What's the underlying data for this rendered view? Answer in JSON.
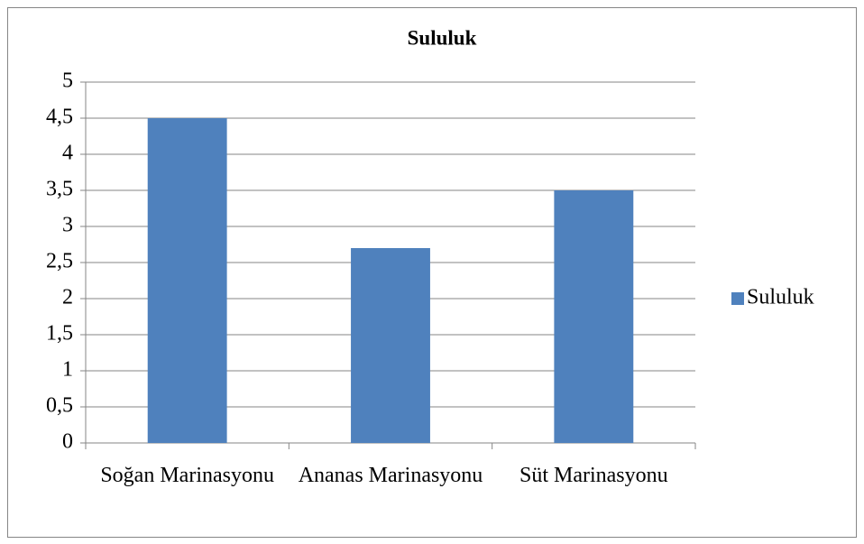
{
  "chart_data": {
    "type": "bar",
    "title": "Sululuk",
    "categories": [
      "Soğan Marinasyonu",
      "Ananas Marinasyonu",
      "Süt Marinasyonu"
    ],
    "series": [
      {
        "name": "Sululuk",
        "color": "#4f81bd",
        "values": [
          4.5,
          2.7,
          3.5
        ]
      }
    ],
    "ylim": [
      0,
      5
    ],
    "yticks": [
      0,
      {
        "value": 0.5,
        "label": "0,5"
      },
      1,
      {
        "value": 1.5,
        "label": "1,5"
      },
      2,
      {
        "value": 2.5,
        "label": "2,5"
      },
      3,
      {
        "value": 3.5,
        "label": "3,5"
      },
      4,
      {
        "value": 4.5,
        "label": "4,5"
      },
      5
    ],
    "grid": true,
    "legend": "right"
  }
}
